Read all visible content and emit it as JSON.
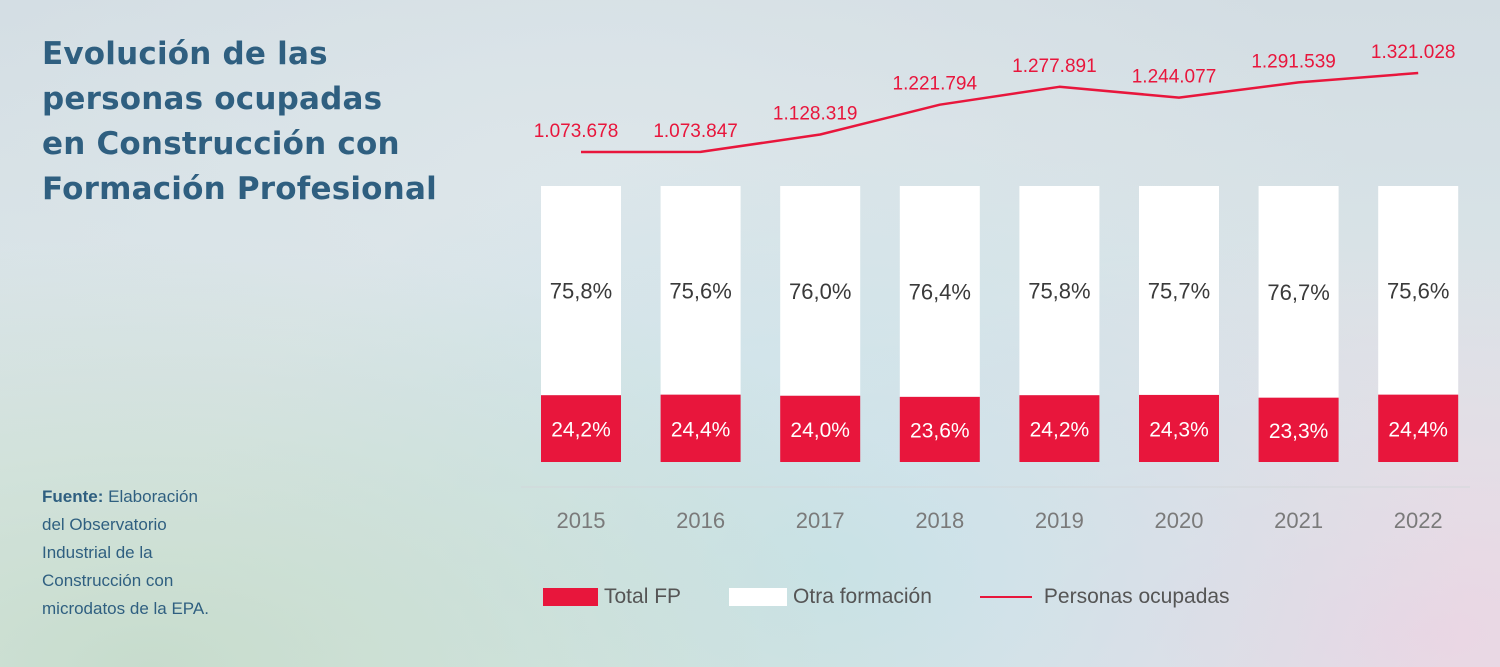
{
  "title_lines": [
    "Evolución de las",
    "personas ocupadas",
    "en Construcción con",
    "Formación Profesional"
  ],
  "source": {
    "label": "Fuente:",
    "lines": [
      " Elaboración",
      "del Observatorio",
      "Industrial de la",
      "Construcción con",
      "microdatos de la EPA."
    ]
  },
  "legend": {
    "fp": "Total FP",
    "otra": "Otra formación",
    "line": "Personas ocupadas"
  },
  "colors": {
    "fp": "#e8163c",
    "otra": "#ffffff",
    "line": "#e8163c",
    "title": "#2f5f80",
    "axis_text": "#7a7a7a"
  },
  "chart_data": {
    "type": "bar",
    "stacked": true,
    "categories": [
      "2015",
      "2016",
      "2017",
      "2018",
      "2019",
      "2020",
      "2021",
      "2022"
    ],
    "series": [
      {
        "name": "Total FP",
        "values": [
          24.2,
          24.4,
          24.0,
          23.6,
          24.2,
          24.3,
          23.3,
          24.4
        ],
        "labels": [
          "24,2%",
          "24,4%",
          "24,0%",
          "23,6%",
          "24,2%",
          "24,3%",
          "23,3%",
          "24,4%"
        ]
      },
      {
        "name": "Otra formación",
        "values": [
          75.8,
          75.6,
          76.0,
          76.4,
          75.8,
          75.7,
          76.7,
          75.6
        ],
        "labels": [
          "75,8%",
          "75,6%",
          "76,0%",
          "76,4%",
          "75,8%",
          "75,7%",
          "76,7%",
          "75,6%"
        ]
      }
    ],
    "line_series": {
      "name": "Personas ocupadas",
      "values": [
        1073678,
        1073847,
        1128319,
        1221794,
        1277891,
        1244077,
        1291539,
        1321028
      ],
      "labels": [
        "1.073.678",
        "1.073.847",
        "1.128.319",
        "1.221.794",
        "1.277.891",
        "1.244.077",
        "1.291.539",
        "1.321.028"
      ]
    },
    "ylim": [
      0,
      100
    ],
    "line_ylim": [
      900000,
      1400000
    ],
    "title": "Evolución de las personas ocupadas en Construcción con Formación Profesional",
    "legend_position": "bottom"
  }
}
